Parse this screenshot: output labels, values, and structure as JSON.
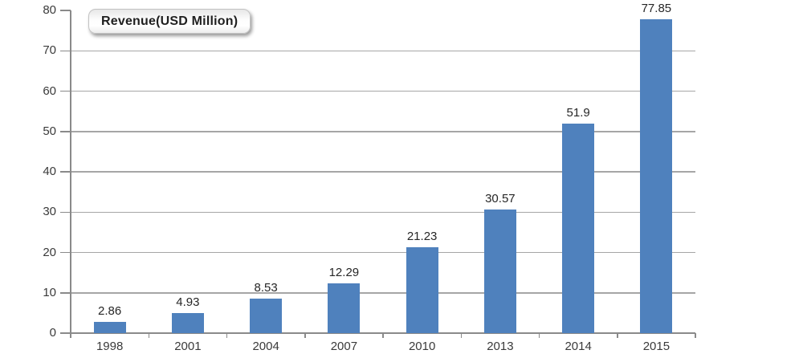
{
  "chart_data": {
    "type": "bar",
    "title": "Revenue(USD Million)",
    "xlabel": "",
    "ylabel": "",
    "categories": [
      "1998",
      "2001",
      "2004",
      "2007",
      "2010",
      "2013",
      "2014",
      "2015"
    ],
    "values": [
      2.86,
      4.93,
      8.53,
      12.29,
      21.23,
      30.57,
      51.9,
      77.85
    ],
    "value_labels": [
      "2.86",
      "4.93",
      "8.53",
      "12.29",
      "21.23",
      "30.57",
      "51.9",
      "77.85"
    ],
    "ylim": [
      0,
      80
    ],
    "yticks": [
      0,
      10,
      20,
      30,
      40,
      50,
      60,
      70,
      80
    ],
    "grid": true,
    "legend_position": "top-left",
    "colors": {
      "bar": "#4f81bd",
      "gridline": "#a6a6a6",
      "axis": "#8a8a8a",
      "tick": "#8a8a8a"
    }
  }
}
